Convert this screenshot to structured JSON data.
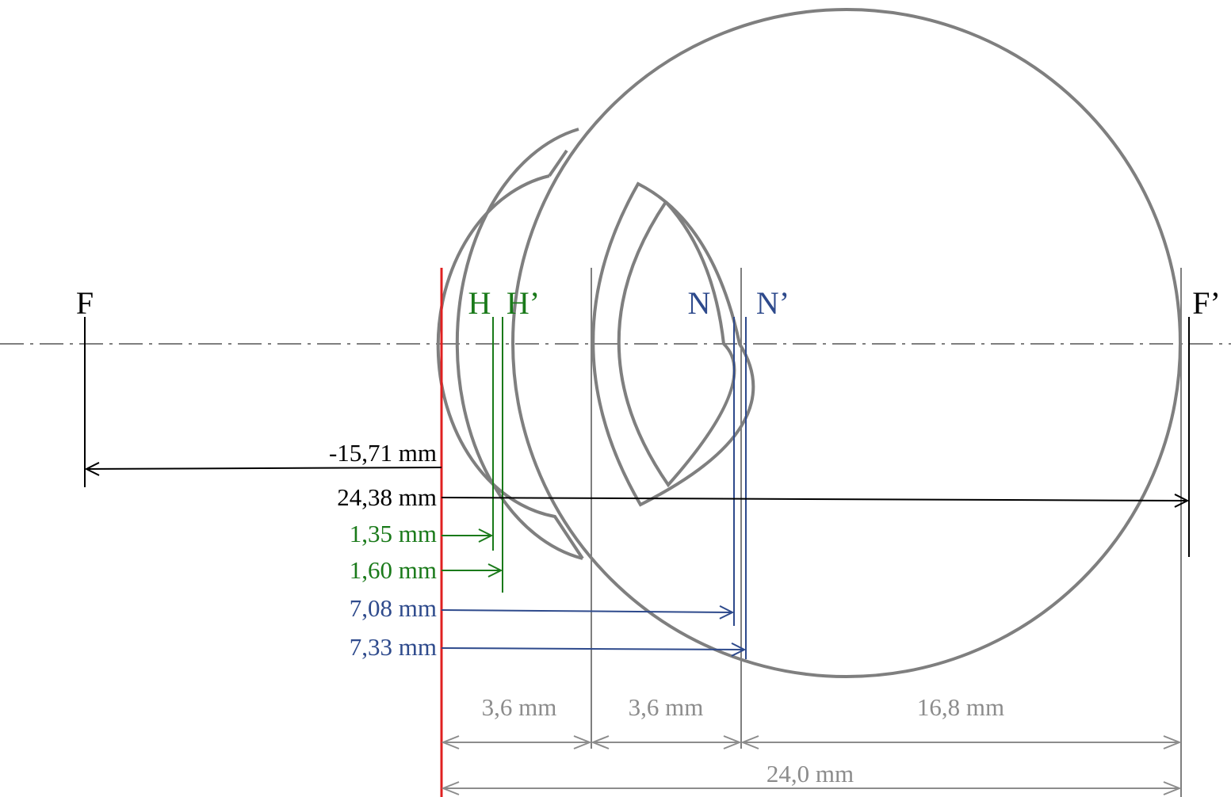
{
  "points": [
    {
      "label": "F"
    },
    {
      "label": "H"
    },
    {
      "label": "H’"
    },
    {
      "label": "N"
    },
    {
      "label": "N’"
    },
    {
      "label": "F’"
    }
  ],
  "distances": [
    {
      "label": "-15,71 mm"
    },
    {
      "label": "24,38 mm"
    },
    {
      "label": "1,35 mm"
    },
    {
      "label": "1,60 mm"
    },
    {
      "label": "7,08 mm"
    },
    {
      "label": "7,33 mm"
    }
  ],
  "segments": [
    {
      "label": "3,6 mm"
    },
    {
      "label": "3,6 mm"
    },
    {
      "label": "16,8 mm"
    }
  ],
  "total": {
    "label": "24,0 mm"
  }
}
